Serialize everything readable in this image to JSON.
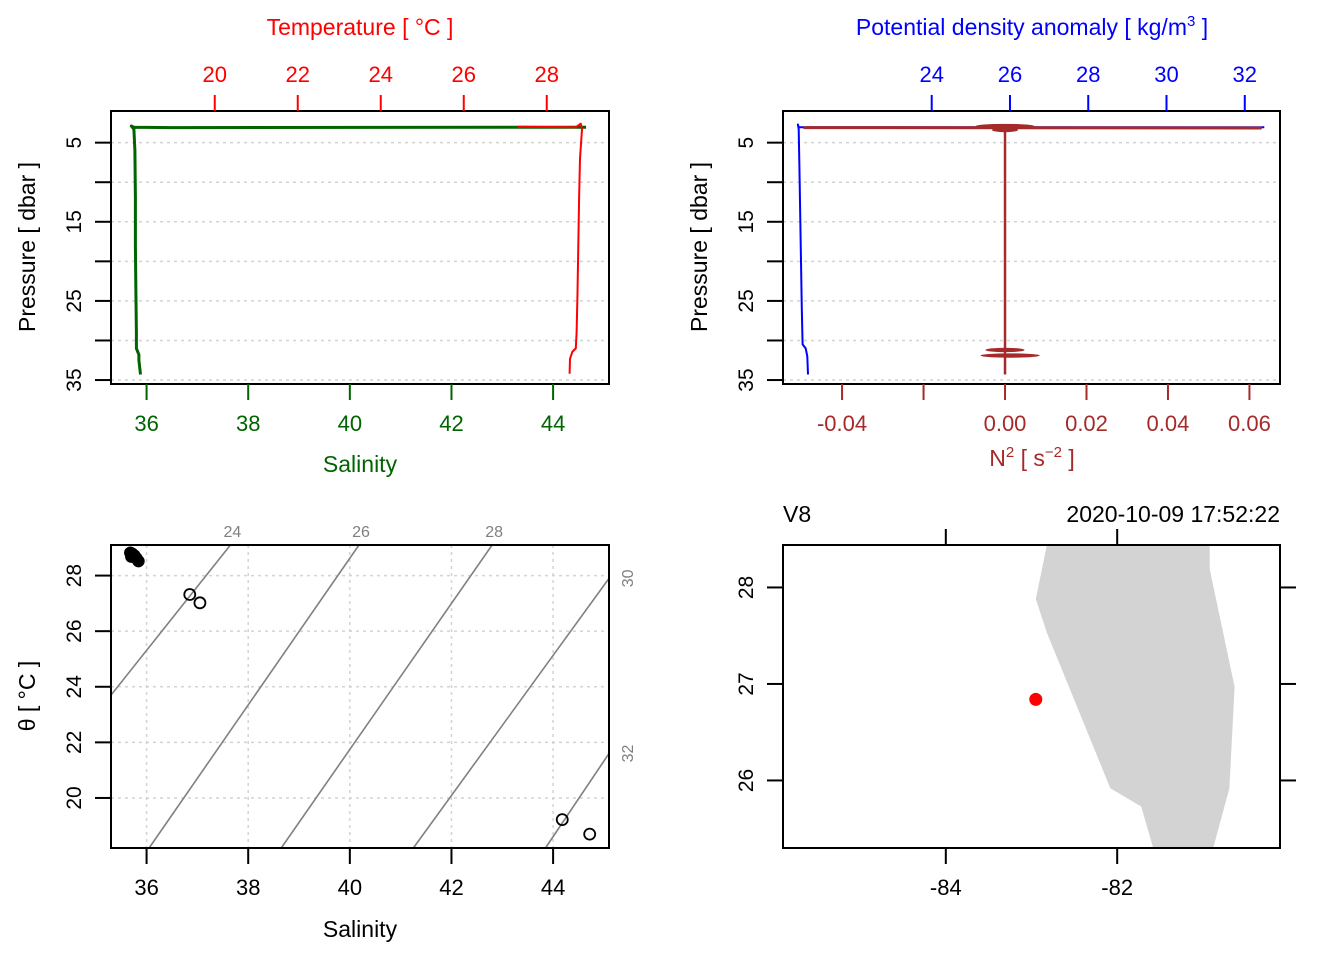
{
  "figure": {
    "type": "ctd-summary",
    "panels": 4
  },
  "chart_data": [
    {
      "id": "profile-TS",
      "type": "line",
      "title": "",
      "top_axis": {
        "label": "Temperature [ °C ]",
        "color": "#ff0000",
        "ticks": [
          20,
          22,
          24,
          26,
          28
        ],
        "range": [
          17.5,
          29.5
        ]
      },
      "bottom_axis": {
        "label": "Salinity",
        "color": "#006400",
        "ticks": [
          36,
          38,
          40,
          42,
          44
        ],
        "range": [
          35.3,
          45.1
        ]
      },
      "left_axis": {
        "label": "Pressure [ dbar ]",
        "ticks": [
          5,
          10,
          15,
          20,
          25,
          30,
          35
        ],
        "tick_labels": [
          "5",
          "",
          "15",
          "",
          "25",
          "",
          "35"
        ],
        "range": [
          1.0,
          35.5
        ],
        "reversed": true
      },
      "grid": {
        "horizontal": true,
        "style": "dotted"
      },
      "series": [
        {
          "name": "Salinity",
          "axis": "bottom",
          "color": "#006400",
          "points": [
            [
              44.65,
              3.05
            ],
            [
              36.5,
              3.1
            ],
            [
              35.75,
              3.05
            ],
            [
              35.7,
              2.9
            ],
            [
              35.75,
              3.3
            ],
            [
              35.77,
              6
            ],
            [
              35.78,
              12
            ],
            [
              35.78,
              18
            ],
            [
              35.79,
              24
            ],
            [
              35.8,
              29
            ],
            [
              35.8,
              31
            ],
            [
              35.85,
              31.8
            ],
            [
              35.85,
              32.5
            ],
            [
              35.88,
              34.3
            ]
          ]
        },
        {
          "name": "Temperature",
          "axis": "top",
          "color": "#ff0000",
          "points": [
            [
              27.3,
              3.0
            ],
            [
              28.7,
              3.05
            ],
            [
              28.82,
              2.6
            ],
            [
              28.85,
              3.3
            ],
            [
              28.8,
              7
            ],
            [
              28.78,
              12
            ],
            [
              28.76,
              18
            ],
            [
              28.74,
              24
            ],
            [
              28.72,
              29
            ],
            [
              28.7,
              31
            ],
            [
              28.62,
              31.4
            ],
            [
              28.56,
              32.3
            ],
            [
              28.55,
              34.2
            ]
          ]
        }
      ]
    },
    {
      "id": "profile-density-N2",
      "type": "line",
      "title": "",
      "top_axis": {
        "label": "Potential density anomaly [ kg/m³ ]",
        "label_main": "Potential density anomaly [ kg/m",
        "label_sup": "3",
        "label_end": " ]",
        "color": "#0000ff",
        "ticks": [
          24,
          26,
          28,
          30,
          32
        ],
        "range": [
          20.2,
          32.9
        ]
      },
      "bottom_axis": {
        "label": "N² [ s⁻² ]",
        "label_main": "N",
        "label_sup": "2",
        "label_mid": " [ s",
        "label_sup2": "−2",
        "label_end": " ]",
        "color": "#a52a2a",
        "ticks": [
          -0.04,
          -0.02,
          0.0,
          0.02,
          0.04,
          0.06
        ],
        "tick_labels": [
          "-0.04",
          "",
          "0.00",
          "0.02",
          "0.04",
          "0.06"
        ],
        "range": [
          -0.0545,
          0.0675
        ]
      },
      "left_axis": {
        "label": "Pressure [ dbar ]",
        "ticks": [
          5,
          10,
          15,
          20,
          25,
          30,
          35
        ],
        "tick_labels": [
          "5",
          "",
          "15",
          "",
          "25",
          "",
          "35"
        ],
        "range": [
          1.0,
          35.5
        ],
        "reversed": true
      },
      "grid": {
        "horizontal": true,
        "style": "dotted"
      },
      "series": [
        {
          "name": "Potential density anomaly",
          "axis": "top",
          "color": "#0000ff",
          "points": [
            [
              32.5,
              3.05
            ],
            [
              21.5,
              3.05
            ],
            [
              20.6,
              3.05
            ],
            [
              20.58,
              2.7
            ],
            [
              20.6,
              3.3
            ],
            [
              20.62,
              8
            ],
            [
              20.64,
              14
            ],
            [
              20.66,
              20
            ],
            [
              20.68,
              26
            ],
            [
              20.7,
              30.5
            ],
            [
              20.78,
              31
            ],
            [
              20.82,
              32
            ],
            [
              20.84,
              34.3
            ]
          ]
        },
        {
          "name": "N2",
          "axis": "bottom",
          "color": "#a52a2a",
          "points": [
            [
              -0.0495,
              3.1
            ],
            [
              0.063,
              3.15
            ]
          ],
          "core": [
            [
              0.0,
              3.4
            ],
            [
              0.0,
              34.3
            ]
          ],
          "spikes": [
            {
              "p": 2.9,
              "min": -0.0072,
              "max": 0.0072
            },
            {
              "p": 3.4,
              "min": -0.0032,
              "max": 0.0032
            },
            {
              "p": 31.2,
              "min": -0.0048,
              "max": 0.0048
            },
            {
              "p": 31.9,
              "min": -0.006,
              "max": 0.0085
            }
          ]
        }
      ]
    },
    {
      "id": "TS-diagram",
      "type": "scatter",
      "title": "",
      "xlabel": "Salinity",
      "ylabel": "θ [ °C ]",
      "xticks": [
        36,
        38,
        40,
        42,
        44
      ],
      "yticks": [
        20,
        22,
        24,
        26,
        28
      ],
      "xlim": [
        35.3,
        45.1
      ],
      "ylim": [
        18.2,
        29.1
      ],
      "grid": {
        "on": true,
        "style": "dotted"
      },
      "isopycnals": {
        "color": "#808080",
        "labels": [
          "24",
          "26",
          "28",
          "30",
          "32"
        ],
        "lines": [
          {
            "sigma": 24,
            "from": [
              35.3,
              23.7
            ],
            "to": [
              37.65,
              29.1
            ],
            "label_edge": "top"
          },
          {
            "sigma": 26,
            "from": [
              36.05,
              18.2
            ],
            "to": [
              40.18,
              29.1
            ],
            "label_edge": "top"
          },
          {
            "sigma": 28,
            "from": [
              38.65,
              18.2
            ],
            "to": [
              42.8,
              29.1
            ],
            "label_edge": "top"
          },
          {
            "sigma": 30,
            "from": [
              41.25,
              18.2
            ],
            "to": [
              45.1,
              27.9
            ],
            "label_edge": "right"
          },
          {
            "sigma": 32,
            "from": [
              43.85,
              18.2
            ],
            "to": [
              45.1,
              21.6
            ],
            "label_edge": "right"
          }
        ]
      },
      "points": [
        {
          "S": 35.68,
          "T": 28.82,
          "style": "filled-cluster"
        },
        {
          "S": 35.72,
          "T": 28.78,
          "style": "filled-cluster"
        },
        {
          "S": 35.76,
          "T": 28.72,
          "style": "filled-cluster"
        },
        {
          "S": 35.8,
          "T": 28.62,
          "style": "filled-cluster"
        },
        {
          "S": 35.84,
          "T": 28.52,
          "style": "filled-cluster"
        },
        {
          "S": 35.7,
          "T": 28.68,
          "style": "filled-cluster"
        },
        {
          "S": 36.85,
          "T": 27.32,
          "style": "open"
        },
        {
          "S": 37.05,
          "T": 27.02,
          "style": "open"
        },
        {
          "S": 44.18,
          "T": 19.22,
          "style": "open"
        },
        {
          "S": 44.72,
          "T": 18.7,
          "style": "open"
        }
      ]
    },
    {
      "id": "station-map",
      "type": "map",
      "title_left": "V8",
      "title_right": "2020-10-09 17:52:22",
      "xticks": [
        -84,
        -82
      ],
      "yticks": [
        26,
        27,
        28
      ],
      "xlim": [
        -85.9,
        -80.1
      ],
      "ylim": [
        25.3,
        28.44
      ],
      "land_color": "#d3d3d3",
      "station": {
        "lon": -82.95,
        "lat": 26.84,
        "color": "#ff0000"
      },
      "coastline": [
        [
          -82.82,
          28.44
        ],
        [
          -82.95,
          27.88
        ],
        [
          -82.82,
          27.53
        ],
        [
          -82.08,
          25.92
        ],
        [
          -81.72,
          25.73
        ],
        [
          -81.58,
          25.3
        ],
        [
          -80.88,
          25.3
        ],
        [
          -80.69,
          25.92
        ],
        [
          -80.63,
          26.97
        ],
        [
          -80.92,
          28.19
        ],
        [
          -80.92,
          28.44
        ]
      ]
    }
  ]
}
